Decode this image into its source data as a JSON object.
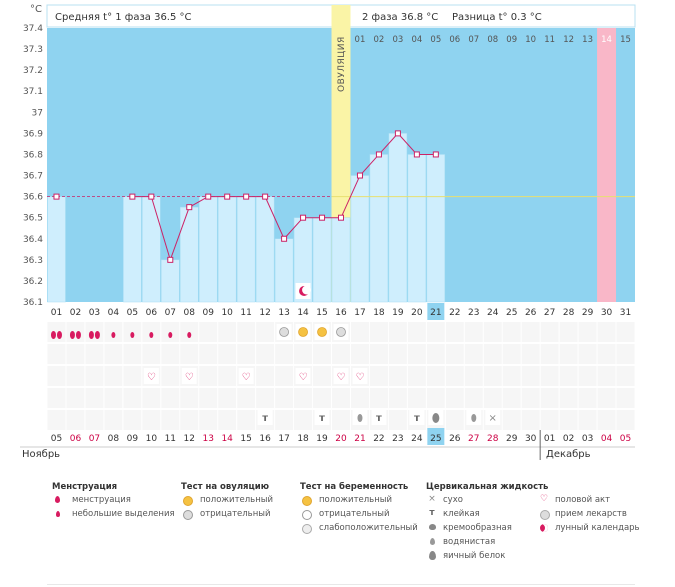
{
  "header": {
    "avg_phase1": "Средняя t° 1 фаза 36.5 °C",
    "avg_phase2": "2 фаза 36.8 °C",
    "diff": "Разница t° 0.3 °C",
    "unit": "°C"
  },
  "month_labels": {
    "start": "Ноябрь",
    "end": "Декабрь"
  },
  "ovulation_label": "ОВУЛЯЦИЯ",
  "chart_data": {
    "type": "line",
    "ylim": [
      36.1,
      37.4
    ],
    "yticks": [
      "37.4",
      "37.3",
      "37.2",
      "37.1",
      "37",
      "36.9",
      "36.8",
      "36.7",
      "36.6",
      "36.5",
      "36.4",
      "36.3",
      "36.2",
      "36.1"
    ],
    "cycle_days": [
      "01",
      "02",
      "03",
      "04",
      "05",
      "06",
      "07",
      "08",
      "09",
      "10",
      "11",
      "12",
      "13",
      "14",
      "15",
      "16",
      "17",
      "18",
      "19",
      "20",
      "21",
      "22",
      "23",
      "24",
      "25",
      "26",
      "27",
      "28",
      "29",
      "30",
      "31"
    ],
    "dates": [
      "05",
      "06",
      "07",
      "08",
      "09",
      "10",
      "11",
      "12",
      "13",
      "14",
      "15",
      "16",
      "17",
      "18",
      "19",
      "20",
      "21",
      "22",
      "23",
      "24",
      "25",
      "26",
      "27",
      "28",
      "29",
      "30",
      "01",
      "02",
      "03",
      "04",
      "05"
    ],
    "date_colors": [
      "#333",
      "#cc0044",
      "#cc0044",
      "#333",
      "#333",
      "#333",
      "#333",
      "#333",
      "#cc0044",
      "#cc0044",
      "#333",
      "#333",
      "#333",
      "#333",
      "#333",
      "#cc0044",
      "#cc0044",
      "#333",
      "#333",
      "#333",
      "#333",
      "#333",
      "#cc0044",
      "#cc0044",
      "#333",
      "#333",
      "#333",
      "#333",
      "#333",
      "#cc0044",
      "#cc0044"
    ],
    "top_days": [
      "01",
      "02",
      "03",
      "04",
      "05",
      "06",
      "07",
      "08",
      "09",
      "10",
      "11",
      "12",
      "13",
      "14",
      "15"
    ],
    "temperatures": [
      36.6,
      null,
      null,
      null,
      36.6,
      36.6,
      36.3,
      36.55,
      36.6,
      36.6,
      36.6,
      36.6,
      36.4,
      36.5,
      36.5,
      36.5,
      36.7,
      36.8,
      36.9,
      36.8,
      36.8
    ],
    "baseline": 36.6,
    "ovulation_day": 16,
    "today_day": 21,
    "today_date": "25",
    "next_period_top_day": "14",
    "menstruation": [
      2,
      2,
      2,
      1,
      1,
      1,
      1,
      1
    ],
    "ovulation_tests": [
      null,
      null,
      null,
      null,
      null,
      null,
      null,
      null,
      null,
      null,
      null,
      null,
      "neg",
      "pos",
      "pos",
      "neg"
    ],
    "intercourse_days": [
      6,
      8,
      11,
      14,
      16,
      17
    ],
    "fluid": {
      "12": "sticky",
      "15": "sticky",
      "17": "watery",
      "18": "sticky",
      "20": "sticky",
      "21": "egg",
      "23": "watery",
      "24": "dry"
    },
    "lunar_day": 14
  },
  "legend": {
    "menstruation": {
      "title": "Менструация",
      "items": [
        "менструация",
        "небольшие выделения"
      ]
    },
    "ovulation_test": {
      "title": "Тест на овуляцию",
      "items": [
        "положительный",
        "отрицательный"
      ]
    },
    "pregnancy_test": {
      "title": "Тест на беременность",
      "items": [
        "положительный",
        "отрицательный",
        "слабоположительный"
      ]
    },
    "cervical": {
      "title": "Цервикальная жидкость",
      "items": [
        "сухо",
        "клейкая",
        "кремообразная",
        "водянистая",
        "яичный белок"
      ]
    },
    "other": {
      "items": [
        "половой акт",
        "прием лекарств",
        "лунный календарь"
      ]
    },
    "icons": {
      "dry": "×",
      "sticky": "т",
      "heart": "♡"
    },
    "colors": {
      "chart_bg": "#8fd3f0",
      "bar": "#cfeefd",
      "line": "#cc2266",
      "ovulation": "#faf4a6",
      "next_period": "#f9b7c8",
      "today": "#8fd3f0",
      "pos": "#f5c242"
    }
  }
}
